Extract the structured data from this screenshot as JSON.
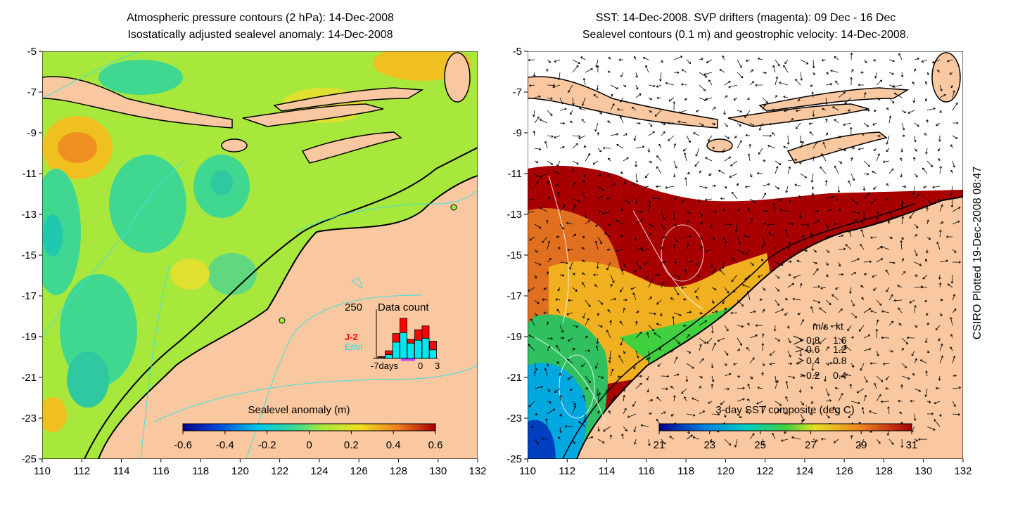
{
  "left_panel": {
    "title_line1": "Atmospheric pressure contours (2 hPa): 14-Dec-2008",
    "title_line2": "Isostatically adjusted sealevel anomaly: 14-Dec-2008",
    "colorbar": {
      "label": "Sealevel anomaly (m)",
      "ticks": [
        "-0.6",
        "-0.4",
        "-0.2",
        "0",
        "0.2",
        "0.4",
        "0.6"
      ],
      "range": [
        -0.6,
        0.6
      ]
    },
    "inset": {
      "ymax_label": "250",
      "title": "Data count",
      "series": [
        {
          "name": "J-2",
          "color": "#ff0000",
          "values": [
            10,
            40,
            130,
            210,
            100,
            150,
            170,
            90
          ]
        },
        {
          "name": "Envi",
          "color": "#00e5ee",
          "values": [
            5,
            20,
            85,
            135,
            80,
            95,
            105,
            45
          ]
        }
      ],
      "x_labels": [
        "-7days",
        "0",
        "3"
      ]
    }
  },
  "right_panel": {
    "title_line1": "SST: 14-Dec-2008. SVP drifters (magenta): 09 Dec - 16 Dec",
    "title_line2": "Sealevel contours (0.1 m) and geostrophic velocity: 14-Dec-2008.",
    "colorbar": {
      "label": "3-day SST composite (deg C)",
      "ticks": [
        "21",
        "23",
        "25",
        "27",
        "29",
        "31"
      ],
      "range": [
        21,
        31
      ]
    },
    "velocity_legend": {
      "header_ms": "m/s",
      "header_kt": "kt",
      "rows": [
        {
          "ms": "0.8",
          "kt": "1.6"
        },
        {
          "ms": "0.6",
          "kt": "1.2"
        },
        {
          "ms": "0.4",
          "kt": "0.8"
        },
        {
          "ms": "0.2",
          "kt": "0.4"
        }
      ]
    }
  },
  "axes": {
    "lon_ticks": [
      "110",
      "112",
      "114",
      "116",
      "118",
      "120",
      "122",
      "124",
      "126",
      "128",
      "130",
      "132"
    ],
    "lat_ticks": [
      "-5",
      "-7",
      "-9",
      "-11",
      "-13",
      "-15",
      "-17",
      "-19",
      "-21",
      "-23",
      "-25"
    ],
    "lon_range": [
      110,
      132
    ],
    "lat_range": [
      -25,
      -5
    ]
  },
  "credit": "CSIRO Plotted 19-Dec-2008 08:47",
  "colors": {
    "land": "#f9c8a0",
    "sla_background": "#a8e83c",
    "sst_warm": "#a80000",
    "contour_cyan": "#40e0e0"
  }
}
